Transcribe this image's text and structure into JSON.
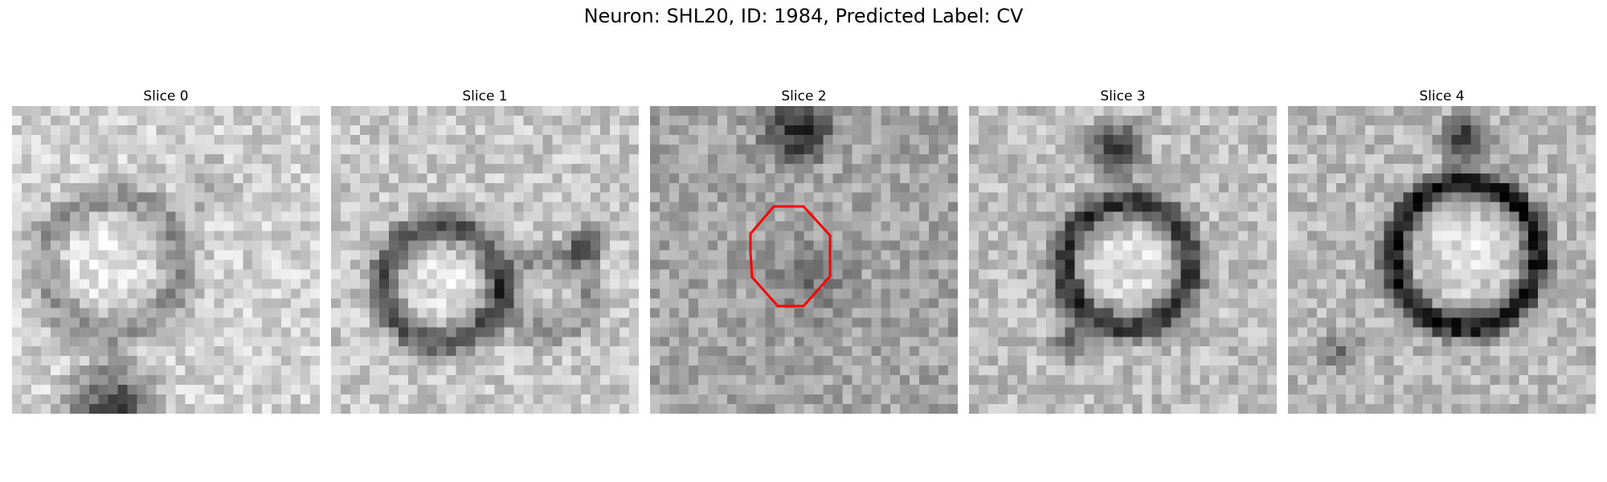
{
  "figure": {
    "title": "Neuron: SHL20, ID: 1984, Predicted Label: CV"
  },
  "panels": [
    {
      "title": "Slice 0",
      "seed": 11,
      "contour": false
    },
    {
      "title": "Slice 1",
      "seed": 23,
      "contour": false
    },
    {
      "title": "Slice 2",
      "seed": 37,
      "contour": true
    },
    {
      "title": "Slice 3",
      "seed": 41,
      "contour": false
    },
    {
      "title": "Slice 4",
      "seed": 53,
      "contour": false
    }
  ],
  "colors": {
    "background": "#ffffff",
    "contour": "#ff0000",
    "colormap": "grayscale"
  }
}
